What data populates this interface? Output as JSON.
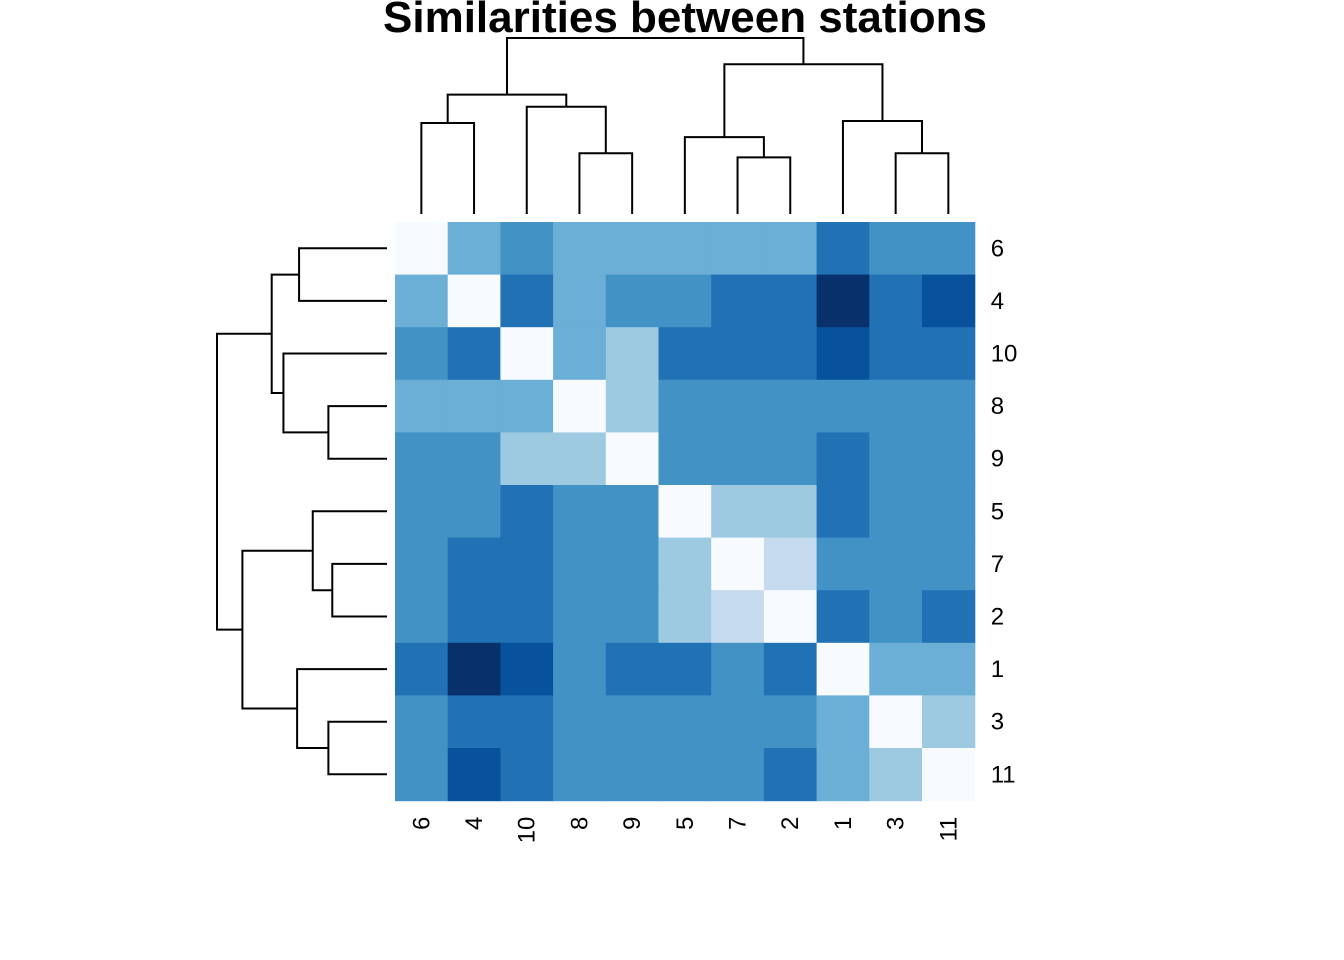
{
  "chart_data": {
    "type": "heatmap",
    "title": "Similarities between stations",
    "row_labels": [
      "6",
      "4",
      "10",
      "8",
      "9",
      "5",
      "7",
      "2",
      "1",
      "3",
      "11"
    ],
    "col_labels": [
      "6",
      "4",
      "10",
      "8",
      "9",
      "5",
      "7",
      "2",
      "1",
      "3",
      "11"
    ],
    "color_scale": [
      "#f7fbff",
      "#deebf7",
      "#c6dbef",
      "#9ecae1",
      "#6baed6",
      "#4292c6",
      "#2171b5",
      "#08519c",
      "#08306b"
    ],
    "values": [
      [
        0,
        5,
        6,
        4,
        5,
        5,
        5,
        5,
        7,
        6,
        6
      ],
      [
        5,
        0,
        6.5,
        5,
        6,
        6,
        6.5,
        6.5,
        9,
        7,
        8
      ],
      [
        6,
        6.5,
        0,
        5,
        3.3,
        6.5,
        7,
        7,
        8,
        7,
        7
      ],
      [
        4,
        5,
        5,
        0,
        3,
        5.5,
        5.5,
        5.5,
        6,
        6,
        6
      ],
      [
        5.5,
        6,
        3.3,
        3,
        0,
        5.5,
        6,
        6,
        7,
        6,
        6
      ],
      [
        5.5,
        6,
        6.5,
        5.5,
        5.5,
        0,
        3.3,
        3.3,
        7,
        6,
        6
      ],
      [
        5.5,
        6.5,
        7,
        5.5,
        6,
        3.3,
        0,
        2.3,
        6,
        5.3,
        6
      ],
      [
        5.5,
        6.5,
        7,
        5.5,
        6,
        3.3,
        2.3,
        0,
        7,
        6,
        6.5
      ],
      [
        7,
        9,
        8,
        6,
        7,
        7,
        6,
        7,
        0,
        5,
        5
      ],
      [
        6,
        7,
        7,
        6,
        6,
        6,
        5.5,
        6,
        5,
        0,
        3
      ],
      [
        6,
        8,
        7,
        6,
        6,
        6,
        6,
        6.5,
        5,
        3,
        0
      ]
    ],
    "dendrogram": {
      "order": [
        "6",
        "4",
        "10",
        "8",
        "9",
        "5",
        "7",
        "2",
        "1",
        "3",
        "11"
      ],
      "merges": [
        {
          "left": 3,
          "right": 4,
          "height": 3
        },
        {
          "left": 6,
          "right": 7,
          "height": 2.8
        },
        {
          "left": 9,
          "right": 10,
          "height": 3
        },
        {
          "left": 0,
          "right": 1,
          "height": 4.5
        },
        {
          "left": "m0",
          "right": 2,
          "height": 5.3
        },
        {
          "left": "m1",
          "right": 5,
          "height": 3.8
        },
        {
          "left": 8,
          "right": "m2",
          "height": 4.6
        },
        {
          "left": "m3",
          "right": "m4",
          "height": 5.9
        },
        {
          "left": "m5",
          "right": "m6",
          "height": 7.4
        },
        {
          "left": "m7",
          "right": "m8",
          "height": 8.7
        }
      ]
    }
  }
}
